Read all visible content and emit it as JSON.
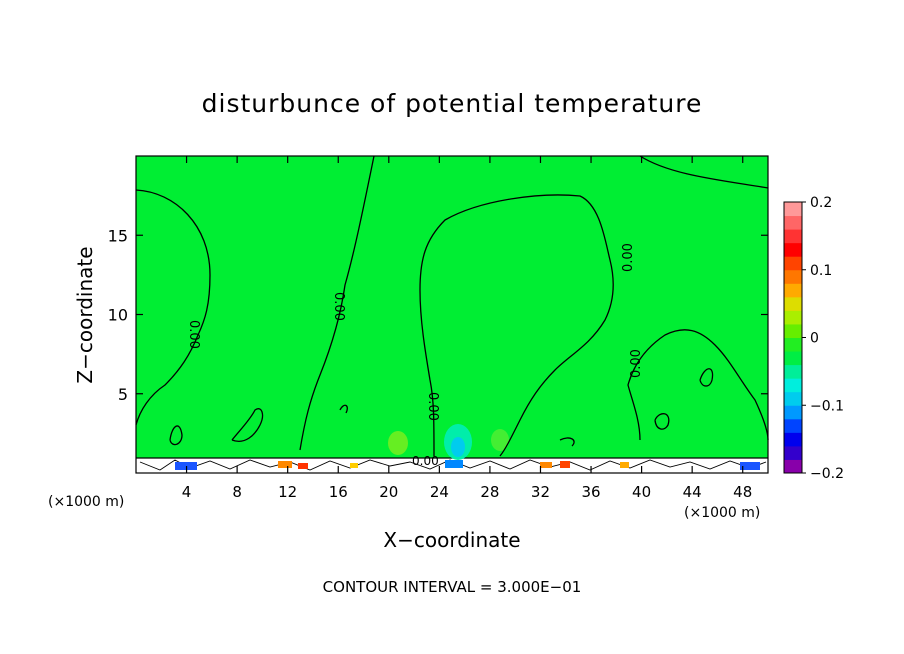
{
  "chart_data": {
    "type": "heatmap",
    "title": "disturbunce of potential temperature",
    "xlabel": "X−coordinate",
    "ylabel": "Z−coordinate",
    "x_unit_left": "(×1000 m)",
    "x_unit_right": "(×1000 m)",
    "xlim": [
      0,
      50
    ],
    "ylim": [
      0,
      20
    ],
    "x_ticks": [
      4,
      8,
      12,
      16,
      20,
      24,
      28,
      32,
      36,
      40,
      44,
      48
    ],
    "y_ticks": [
      5,
      10,
      15
    ],
    "contour_labels": [
      "0.00",
      "0.00",
      "0.00",
      "0.00",
      "0.00",
      "0.00"
    ],
    "footer": "CONTOUR INTERVAL = 3.000E−01",
    "colorbar": {
      "min": -0.2,
      "max": 0.2,
      "ticks": [
        {
          "value": 0.2,
          "label": "0.2"
        },
        {
          "value": 0.1,
          "label": "0.1"
        },
        {
          "value": 0.0,
          "label": "0"
        },
        {
          "value": -0.1,
          "label": "−0.1"
        },
        {
          "value": -0.2,
          "label": "−0.2"
        }
      ],
      "colors": [
        "#8800aa",
        "#3300cc",
        "#0000ee",
        "#0044ff",
        "#0099ff",
        "#00ccee",
        "#00eedd",
        "#00ee99",
        "#00ee44",
        "#22ee22",
        "#66ee00",
        "#aaee00",
        "#dddd00",
        "#ffaa00",
        "#ff7700",
        "#ff4400",
        "#ff0000",
        "#ff3333",
        "#ff6666",
        "#ff9999"
      ]
    },
    "background_value": 0.0,
    "grid": false
  }
}
